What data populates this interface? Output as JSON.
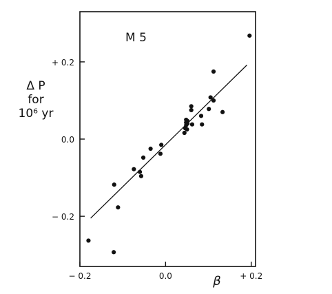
{
  "chart_data": {
    "type": "scatter",
    "title": "M 5",
    "xlabel": "β",
    "ylabel_lines": [
      "Δ P",
      "for",
      "10⁶ yr"
    ],
    "xlim": [
      -0.2,
      0.21
    ],
    "ylim": [
      -0.33,
      0.33
    ],
    "grid": false,
    "x_ticks": [
      {
        "value": -0.2,
        "label": "− 0.2"
      },
      {
        "value": 0.0,
        "label": "0.0"
      },
      {
        "value": 0.2,
        "label": "+ 0.2"
      }
    ],
    "y_ticks": [
      {
        "value": 0.2,
        "label": "+ 0.2"
      },
      {
        "value": 0.0,
        "label": "0.0"
      },
      {
        "value": -0.2,
        "label": "− 0.2"
      }
    ],
    "points": [
      {
        "x": 0.196,
        "y": 0.268
      },
      {
        "x": 0.112,
        "y": 0.175
      },
      {
        "x": 0.105,
        "y": 0.108
      },
      {
        "x": 0.112,
        "y": 0.1
      },
      {
        "x": 0.133,
        "y": 0.07
      },
      {
        "x": 0.101,
        "y": 0.078
      },
      {
        "x": 0.06,
        "y": 0.085
      },
      {
        "x": 0.06,
        "y": 0.075
      },
      {
        "x": 0.083,
        "y": 0.06
      },
      {
        "x": 0.048,
        "y": 0.05
      },
      {
        "x": 0.051,
        "y": 0.047
      },
      {
        "x": 0.048,
        "y": 0.043
      },
      {
        "x": 0.051,
        "y": 0.04
      },
      {
        "x": 0.048,
        "y": 0.036
      },
      {
        "x": 0.062,
        "y": 0.038
      },
      {
        "x": 0.085,
        "y": 0.038
      },
      {
        "x": 0.046,
        "y": 0.028
      },
      {
        "x": 0.05,
        "y": 0.025
      },
      {
        "x": 0.044,
        "y": 0.016
      },
      {
        "x": -0.01,
        "y": -0.015
      },
      {
        "x": -0.035,
        "y": -0.025
      },
      {
        "x": -0.012,
        "y": -0.038
      },
      {
        "x": -0.052,
        "y": -0.048
      },
      {
        "x": -0.074,
        "y": -0.078
      },
      {
        "x": -0.06,
        "y": -0.085
      },
      {
        "x": -0.057,
        "y": -0.096
      },
      {
        "x": -0.12,
        "y": -0.118
      },
      {
        "x": -0.111,
        "y": -0.177
      },
      {
        "x": -0.18,
        "y": -0.263
      },
      {
        "x": -0.121,
        "y": -0.293
      }
    ],
    "fit_line": {
      "x": [
        -0.175,
        0.19
      ],
      "y": [
        -0.205,
        0.192
      ]
    }
  }
}
